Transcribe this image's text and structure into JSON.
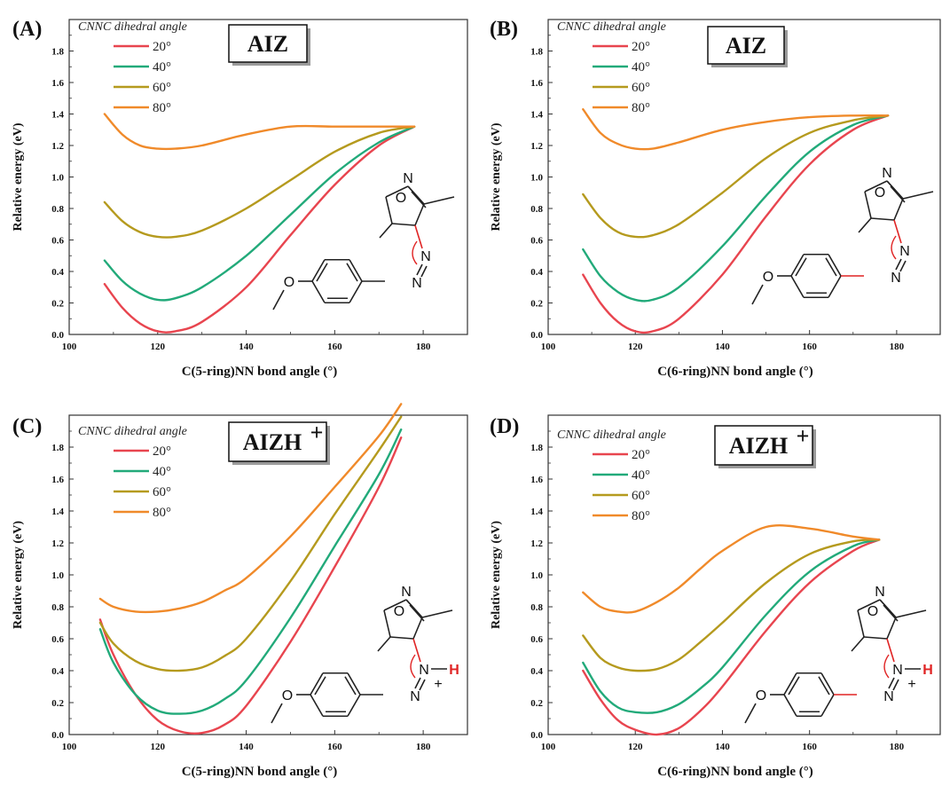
{
  "chart_data": [
    {
      "type": "line",
      "panel_label": "(A)",
      "title": "AIZ",
      "title_sup": "",
      "legend_title": "CNNC dihedral angle",
      "xlabel": "C(5-ring)NN bond angle (°)",
      "ylabel": "Relative energy (eV)",
      "xlim": [
        100,
        190
      ],
      "ylim": [
        0,
        2.0
      ],
      "xticks": [
        "100",
        "120",
        "140",
        "160",
        "180"
      ],
      "yticks": [
        "0.0",
        "0.2",
        "0.4",
        "0.6",
        "0.8",
        "1.0",
        "1.2",
        "1.4",
        "1.6",
        "1.8"
      ],
      "legend_position": "top-left",
      "series": [
        {
          "name": "20°",
          "color": "#e8454f",
          "x": [
            108,
            112,
            116,
            120,
            124,
            130,
            140,
            150,
            160,
            170,
            178
          ],
          "y": [
            0.32,
            0.17,
            0.07,
            0.02,
            0.02,
            0.08,
            0.3,
            0.63,
            0.95,
            1.2,
            1.32
          ]
        },
        {
          "name": "40°",
          "color": "#22aa7a",
          "x": [
            108,
            112,
            116,
            120,
            124,
            130,
            140,
            150,
            160,
            170,
            178
          ],
          "y": [
            0.47,
            0.34,
            0.26,
            0.22,
            0.23,
            0.3,
            0.5,
            0.76,
            1.02,
            1.22,
            1.32
          ]
        },
        {
          "name": "60°",
          "color": "#b59a1e",
          "x": [
            108,
            112,
            116,
            120,
            124,
            130,
            140,
            150,
            160,
            170,
            178
          ],
          "y": [
            0.84,
            0.72,
            0.65,
            0.62,
            0.62,
            0.66,
            0.8,
            0.98,
            1.16,
            1.28,
            1.32
          ]
        },
        {
          "name": "80°",
          "color": "#f08a2a",
          "x": [
            108,
            112,
            116,
            120,
            124,
            130,
            140,
            150,
            160,
            170,
            178
          ],
          "y": [
            1.4,
            1.27,
            1.2,
            1.18,
            1.18,
            1.2,
            1.27,
            1.32,
            1.32,
            1.32,
            1.32
          ]
        }
      ],
      "molecule": {
        "atoms": [
          "O",
          "N",
          "O",
          "N",
          "N"
        ],
        "protonated": false
      }
    },
    {
      "type": "line",
      "panel_label": "(B)",
      "title": "AIZ",
      "title_sup": "",
      "legend_title": "CNNC dihedral angle",
      "xlabel": "C(6-ring)NN bond angle (°)",
      "ylabel": "Relative energy (eV)",
      "xlim": [
        100,
        190
      ],
      "ylim": [
        0,
        2.0
      ],
      "xticks": [
        "100",
        "120",
        "140",
        "160",
        "180"
      ],
      "yticks": [
        "0.0",
        "0.2",
        "0.4",
        "0.6",
        "0.8",
        "1.0",
        "1.2",
        "1.4",
        "1.6",
        "1.8"
      ],
      "legend_position": "top-left",
      "series": [
        {
          "name": "20°",
          "color": "#e8454f",
          "x": [
            108,
            112,
            116,
            120,
            124,
            130,
            140,
            150,
            160,
            170,
            178
          ],
          "y": [
            0.38,
            0.2,
            0.08,
            0.02,
            0.02,
            0.1,
            0.38,
            0.75,
            1.08,
            1.3,
            1.39
          ]
        },
        {
          "name": "40°",
          "color": "#22aa7a",
          "x": [
            108,
            112,
            116,
            120,
            124,
            130,
            140,
            150,
            160,
            170,
            178
          ],
          "y": [
            0.54,
            0.37,
            0.27,
            0.22,
            0.22,
            0.3,
            0.56,
            0.88,
            1.16,
            1.33,
            1.39
          ]
        },
        {
          "name": "60°",
          "color": "#b59a1e",
          "x": [
            108,
            112,
            116,
            120,
            124,
            130,
            140,
            150,
            160,
            170,
            178
          ],
          "y": [
            0.89,
            0.74,
            0.65,
            0.62,
            0.63,
            0.7,
            0.9,
            1.12,
            1.28,
            1.36,
            1.39
          ]
        },
        {
          "name": "80°",
          "color": "#f08a2a",
          "x": [
            108,
            112,
            116,
            120,
            124,
            130,
            140,
            150,
            160,
            170,
            178
          ],
          "y": [
            1.43,
            1.28,
            1.21,
            1.18,
            1.18,
            1.22,
            1.3,
            1.35,
            1.38,
            1.39,
            1.39
          ]
        }
      ],
      "molecule": {
        "atoms": [
          "O",
          "N",
          "O",
          "N",
          "N"
        ],
        "protonated": false
      }
    },
    {
      "type": "line",
      "panel_label": "(C)",
      "title": "AIZH",
      "title_sup": "+",
      "legend_title": "CNNC dihedral angle",
      "xlabel": "C(5-ring)NN bond angle (°)",
      "ylabel": "Relative energy (eV)",
      "xlim": [
        100,
        190
      ],
      "ylim": [
        0,
        2.0
      ],
      "xticks": [
        "100",
        "120",
        "140",
        "160",
        "180"
      ],
      "yticks": [
        "0.0",
        "0.2",
        "0.4",
        "0.6",
        "0.8",
        "1.0",
        "1.2",
        "1.4",
        "1.6",
        "1.8"
      ],
      "legend_position": "top-left",
      "series": [
        {
          "name": "20°",
          "color": "#e8454f",
          "x": [
            107,
            110,
            115,
            120,
            125,
            130,
            135,
            140,
            150,
            160,
            170,
            175
          ],
          "y": [
            0.72,
            0.5,
            0.25,
            0.09,
            0.02,
            0.01,
            0.06,
            0.18,
            0.58,
            1.05,
            1.55,
            1.86
          ]
        },
        {
          "name": "40°",
          "color": "#22aa7a",
          "x": [
            107,
            110,
            115,
            120,
            125,
            130,
            135,
            140,
            150,
            160,
            170,
            175
          ],
          "y": [
            0.66,
            0.45,
            0.25,
            0.15,
            0.13,
            0.15,
            0.22,
            0.34,
            0.73,
            1.18,
            1.63,
            1.91
          ]
        },
        {
          "name": "60°",
          "color": "#b59a1e",
          "x": [
            107,
            110,
            115,
            120,
            125,
            130,
            135,
            140,
            150,
            160,
            170,
            175
          ],
          "y": [
            0.7,
            0.57,
            0.46,
            0.41,
            0.4,
            0.42,
            0.49,
            0.6,
            0.96,
            1.38,
            1.78,
            1.99
          ]
        },
        {
          "name": "80°",
          "color": "#f08a2a",
          "x": [
            107,
            110,
            115,
            120,
            125,
            130,
            135,
            140,
            150,
            160,
            170,
            175
          ],
          "y": [
            0.85,
            0.8,
            0.77,
            0.77,
            0.79,
            0.83,
            0.9,
            0.98,
            1.24,
            1.55,
            1.87,
            2.07
          ]
        }
      ],
      "molecule": {
        "atoms": [
          "O",
          "N",
          "O",
          "N",
          "N",
          "H",
          "+"
        ],
        "protonated": true
      }
    },
    {
      "type": "line",
      "panel_label": "(D)",
      "title": "AIZH",
      "title_sup": "+",
      "legend_title": "CNNC dihedral angle",
      "xlabel": "C(6-ring)NN bond angle (°)",
      "ylabel": "Relative energy (eV)",
      "xlim": [
        100,
        190
      ],
      "ylim": [
        0,
        2.0
      ],
      "xticks": [
        "100",
        "120",
        "140",
        "160",
        "180"
      ],
      "yticks": [
        "0.0",
        "0.2",
        "0.4",
        "0.6",
        "0.8",
        "1.0",
        "1.2",
        "1.4",
        "1.6",
        "1.8"
      ],
      "legend_position": "top-left",
      "series": [
        {
          "name": "20°",
          "color": "#e8454f",
          "x": [
            108,
            112,
            116,
            120,
            125,
            130,
            135,
            140,
            150,
            160,
            170,
            176
          ],
          "y": [
            0.4,
            0.22,
            0.09,
            0.03,
            0.0,
            0.04,
            0.15,
            0.3,
            0.65,
            0.95,
            1.15,
            1.22
          ]
        },
        {
          "name": "40°",
          "color": "#22aa7a",
          "x": [
            108,
            112,
            116,
            120,
            125,
            130,
            135,
            140,
            150,
            160,
            170,
            176
          ],
          "y": [
            0.45,
            0.27,
            0.17,
            0.14,
            0.14,
            0.19,
            0.29,
            0.42,
            0.75,
            1.02,
            1.18,
            1.22
          ]
        },
        {
          "name": "60°",
          "color": "#b59a1e",
          "x": [
            108,
            112,
            116,
            120,
            125,
            130,
            135,
            140,
            150,
            160,
            170,
            176
          ],
          "y": [
            0.62,
            0.48,
            0.42,
            0.4,
            0.41,
            0.47,
            0.58,
            0.7,
            0.95,
            1.13,
            1.21,
            1.22
          ]
        },
        {
          "name": "80°",
          "color": "#f08a2a",
          "x": [
            108,
            112,
            116,
            120,
            125,
            130,
            135,
            140,
            150,
            160,
            170,
            176
          ],
          "y": [
            0.89,
            0.8,
            0.77,
            0.77,
            0.83,
            0.92,
            1.04,
            1.15,
            1.3,
            1.29,
            1.24,
            1.22
          ]
        }
      ],
      "molecule": {
        "atoms": [
          "O",
          "N",
          "O",
          "N",
          "N",
          "H",
          "+"
        ],
        "protonated": true
      }
    }
  ]
}
